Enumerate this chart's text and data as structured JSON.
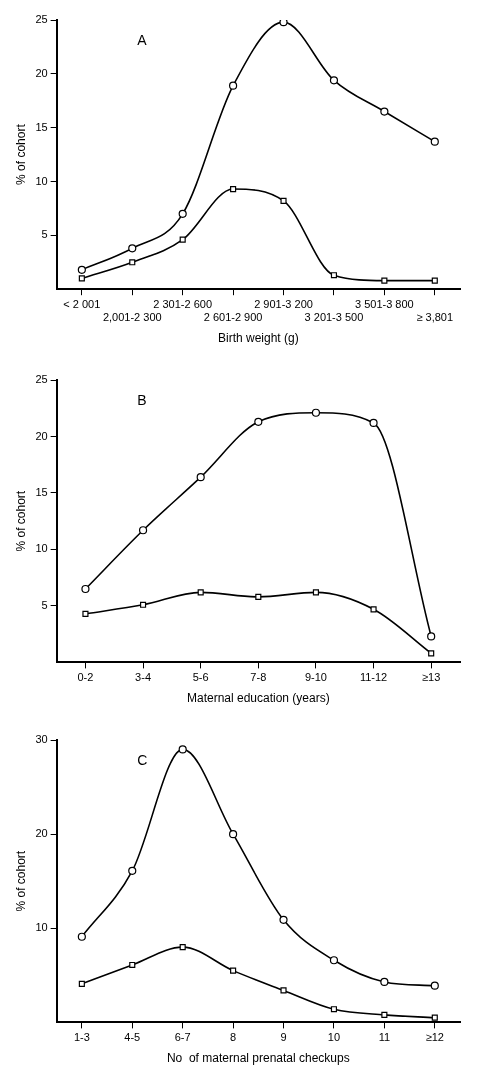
{
  "chart_data": [
    {
      "type": "line",
      "annotations": [
        "A"
      ],
      "xlabel": "Birth weight (g)",
      "ylabel": "% of cohort",
      "categories": [
        "< 2 001",
        "2,001-2 300",
        "2 301-2 600",
        "2 601-2 900",
        "2 901-3 200",
        "3 201-3 500",
        "3 501-3 800",
        "≥ 3,801"
      ],
      "series": [
        {
          "color": "#000000",
          "marker": "circle",
          "values": [
            1.8,
            3.8,
            7.0,
            18.9,
            24.8,
            19.4,
            16.5,
            13.7
          ]
        },
        {
          "color": "#000000",
          "marker": "square",
          "values": [
            1.0,
            2.5,
            4.6,
            9.3,
            8.2,
            1.3,
            0.8,
            0.8
          ]
        }
      ],
      "ylim": [
        0,
        25
      ],
      "yticks": [
        5,
        10,
        15,
        20,
        25
      ],
      "grid": false,
      "legend": false
    },
    {
      "type": "line",
      "annotations": [
        "B"
      ],
      "xlabel": "Maternal education (years)",
      "ylabel": "% of cohort",
      "categories": [
        "0-2",
        "3-4",
        "5-6",
        "7-8",
        "9-10",
        "11-12",
        "≥13"
      ],
      "series": [
        {
          "color": "#000000",
          "marker": "circle",
          "values": [
            6.5,
            11.7,
            16.4,
            21.3,
            22.1,
            21.2,
            2.3
          ]
        },
        {
          "color": "#000000",
          "marker": "square",
          "values": [
            4.3,
            5.1,
            6.2,
            5.8,
            6.2,
            4.7,
            0.8
          ]
        }
      ],
      "ylim": [
        0,
        25
      ],
      "yticks": [
        5,
        10,
        15,
        20,
        25
      ],
      "grid": false,
      "legend": false
    },
    {
      "type": "line",
      "annotations": [
        "C"
      ],
      "xlabel": "No  of maternal prenatal checkups",
      "ylabel": "% of cohort",
      "categories": [
        "1-3",
        "4-5",
        "6-7",
        "8",
        "9",
        "10",
        "11",
        "≥12"
      ],
      "series": [
        {
          "color": "#000000",
          "marker": "circle",
          "values": [
            9.1,
            16.1,
            29.0,
            20.0,
            10.9,
            6.6,
            4.3,
            3.9
          ]
        },
        {
          "color": "#000000",
          "marker": "square",
          "values": [
            4.1,
            6.1,
            8.0,
            5.5,
            3.4,
            1.4,
            0.8,
            0.5
          ]
        }
      ],
      "ylim": [
        0,
        30
      ],
      "yticks": [
        10,
        20,
        30
      ],
      "grid": false,
      "legend": false
    }
  ]
}
